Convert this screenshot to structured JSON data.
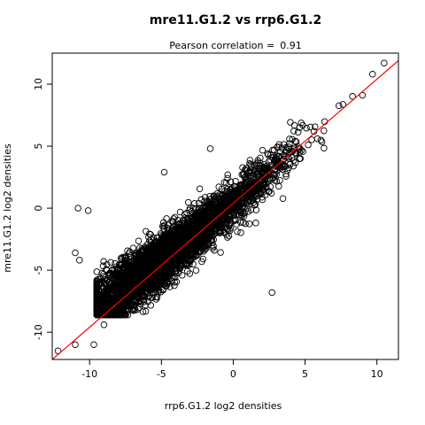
{
  "chart_data": {
    "type": "scatter",
    "title": "mre11.G1.2 vs rrp6.G1.2",
    "subtitle_prefix": "Pearson correlation =",
    "pearson": "0.91",
    "xlabel": "rrp6.G1.2 log2 densities",
    "ylabel": "mre11.G1.2 log2 densities",
    "xlim": [
      -12.6,
      11.5
    ],
    "ylim": [
      -12.2,
      12.5
    ],
    "xticks": [
      -10,
      -5,
      0,
      5,
      10
    ],
    "yticks": [
      -10,
      -5,
      0,
      5,
      10
    ],
    "xtick_labels": [
      "-10",
      "-5",
      "0",
      "5",
      "10"
    ],
    "ytick_labels": [
      "-10",
      "-5",
      "0",
      "5",
      "10"
    ],
    "point_color": "#000000",
    "fit_line": {
      "slope": 1.0,
      "intercept": 0.4,
      "color": "#ff0000"
    },
    "outliers": [
      {
        "x": -12.2,
        "y": -11.5
      },
      {
        "x": -11.0,
        "y": -11.0
      },
      {
        "x": -10.8,
        "y": 0.0
      },
      {
        "x": -10.1,
        "y": -0.2
      },
      {
        "x": -9.7,
        "y": -11.0
      },
      {
        "x": -11.0,
        "y": -3.6
      },
      {
        "x": -10.7,
        "y": -4.2
      },
      {
        "x": -9.0,
        "y": -9.4
      },
      {
        "x": 10.5,
        "y": 11.7
      },
      {
        "x": 9.7,
        "y": 10.8
      },
      {
        "x": 2.7,
        "y": -6.8
      },
      {
        "x": -4.8,
        "y": 2.9
      },
      {
        "x": -1.6,
        "y": 4.8
      },
      {
        "x": -8.2,
        "y": -7.5
      },
      {
        "x": 9.0,
        "y": 9.1
      }
    ]
  }
}
